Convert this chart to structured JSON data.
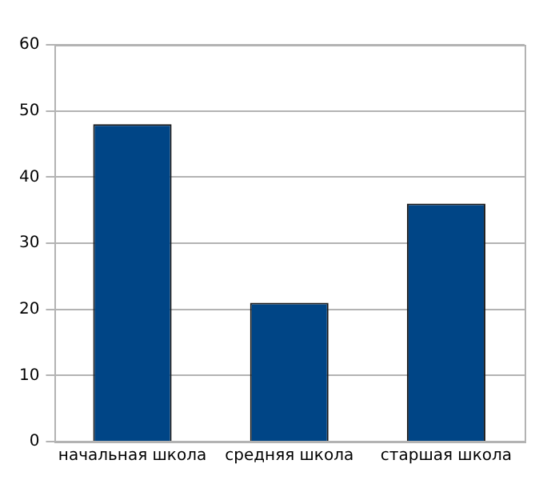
{
  "chart_data": {
    "type": "bar",
    "categories": [
      "начальная школа",
      "средняя школа",
      "старшая школа"
    ],
    "values": [
      48,
      21,
      36
    ],
    "color": "#004586",
    "ylim": [
      0,
      60
    ],
    "yticks": [
      0,
      10,
      20,
      30,
      40,
      50,
      60
    ],
    "grid": "y"
  }
}
